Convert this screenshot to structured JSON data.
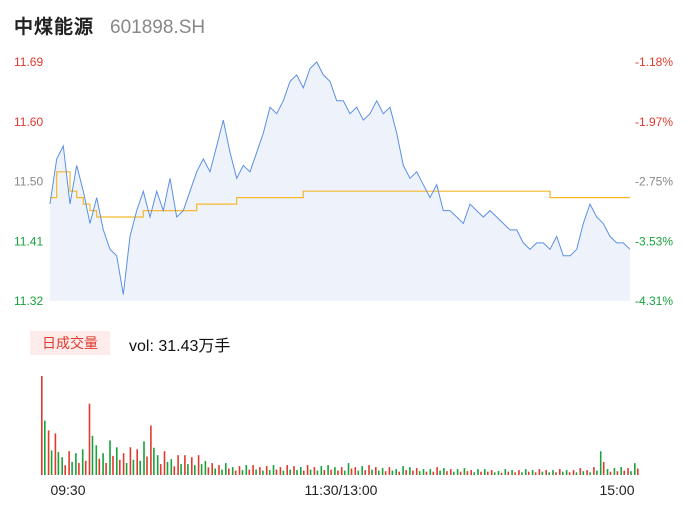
{
  "header": {
    "name": "中煤能源",
    "code": "601898.SH"
  },
  "volume_panel": {
    "tab_label": "日成交量",
    "vol_text": "vol: 31.43万手"
  },
  "colors": {
    "price_line": "#5b8fe6",
    "avg_line": "#f5b82e",
    "up": "#e0392e",
    "down": "#17a23b",
    "area": "#eef3fb"
  },
  "chart_data": {
    "type": "line",
    "price_ticks": [
      "11.69",
      "11.60",
      "11.50",
      "11.41",
      "11.32"
    ],
    "pct_ticks": [
      "-1.18%",
      "-1.97%",
      "-2.75%",
      "-3.53%",
      "-4.31%"
    ],
    "ylim": [
      11.32,
      11.69
    ],
    "xticks": [
      "09:30",
      "11:30/13:00",
      "15:00"
    ],
    "series": [
      {
        "label": "price",
        "values": [
          11.47,
          11.54,
          11.56,
          11.47,
          11.53,
          11.49,
          11.44,
          11.48,
          11.43,
          11.4,
          11.39,
          11.33,
          11.42,
          11.46,
          11.49,
          11.45,
          11.49,
          11.46,
          11.51,
          11.45,
          11.46,
          11.49,
          11.52,
          11.54,
          11.52,
          11.56,
          11.6,
          11.55,
          11.51,
          11.53,
          11.52,
          11.55,
          11.58,
          11.62,
          11.61,
          11.63,
          11.66,
          11.67,
          11.65,
          11.68,
          11.69,
          11.67,
          11.66,
          11.63,
          11.63,
          11.61,
          11.62,
          11.6,
          11.61,
          11.63,
          11.61,
          11.62,
          11.58,
          11.53,
          11.51,
          11.52,
          11.5,
          11.48,
          11.5,
          11.46,
          11.46,
          11.45,
          11.44,
          11.47,
          11.46,
          11.45,
          11.46,
          11.45,
          11.44,
          11.43,
          11.43,
          11.41,
          11.4,
          11.41,
          11.41,
          11.4,
          11.42,
          11.39,
          11.39,
          11.4,
          11.44,
          11.47,
          11.45,
          11.44,
          11.42,
          11.41,
          11.41,
          11.4
        ],
        "color_key": "price_line"
      },
      {
        "label": "average",
        "values": [
          11.48,
          11.52,
          11.52,
          11.49,
          11.48,
          11.47,
          11.46,
          11.45,
          11.45,
          11.45,
          11.45,
          11.45,
          11.45,
          11.45,
          11.46,
          11.46,
          11.46,
          11.46,
          11.46,
          11.46,
          11.46,
          11.46,
          11.47,
          11.47,
          11.47,
          11.47,
          11.47,
          11.47,
          11.48,
          11.48,
          11.48,
          11.48,
          11.48,
          11.48,
          11.48,
          11.48,
          11.48,
          11.48,
          11.49,
          11.49,
          11.49,
          11.49,
          11.49,
          11.49,
          11.49,
          11.49,
          11.49,
          11.49,
          11.49,
          11.49,
          11.49,
          11.49,
          11.49,
          11.49,
          11.49,
          11.49,
          11.49,
          11.49,
          11.49,
          11.49,
          11.49,
          11.49,
          11.49,
          11.49,
          11.49,
          11.49,
          11.49,
          11.49,
          11.49,
          11.49,
          11.49,
          11.49,
          11.49,
          11.49,
          11.49,
          11.48,
          11.48,
          11.48,
          11.48,
          11.48,
          11.48,
          11.48,
          11.48,
          11.48,
          11.48,
          11.48,
          11.48,
          11.48
        ],
        "color_key": "avg_line"
      }
    ],
    "volume": [
      100,
      45,
      42,
      18,
      24,
      22,
      26,
      72,
      30,
      22,
      35,
      28,
      22,
      28,
      26,
      34,
      50,
      20,
      24,
      16,
      20,
      20,
      18,
      20,
      14,
      12,
      10,
      12,
      8,
      9,
      10,
      10,
      8,
      9,
      10,
      8,
      10,
      9,
      8,
      10,
      8,
      9,
      10,
      8,
      8,
      12,
      8,
      9,
      10,
      8,
      7,
      8,
      6,
      9,
      8,
      7,
      6,
      6,
      8,
      7,
      6,
      6,
      7,
      5,
      6,
      6,
      5,
      4,
      6,
      5,
      5,
      6,
      5,
      6,
      5,
      5,
      6,
      5,
      5,
      7,
      5,
      8,
      24,
      6,
      7,
      8,
      7,
      12
    ]
  }
}
